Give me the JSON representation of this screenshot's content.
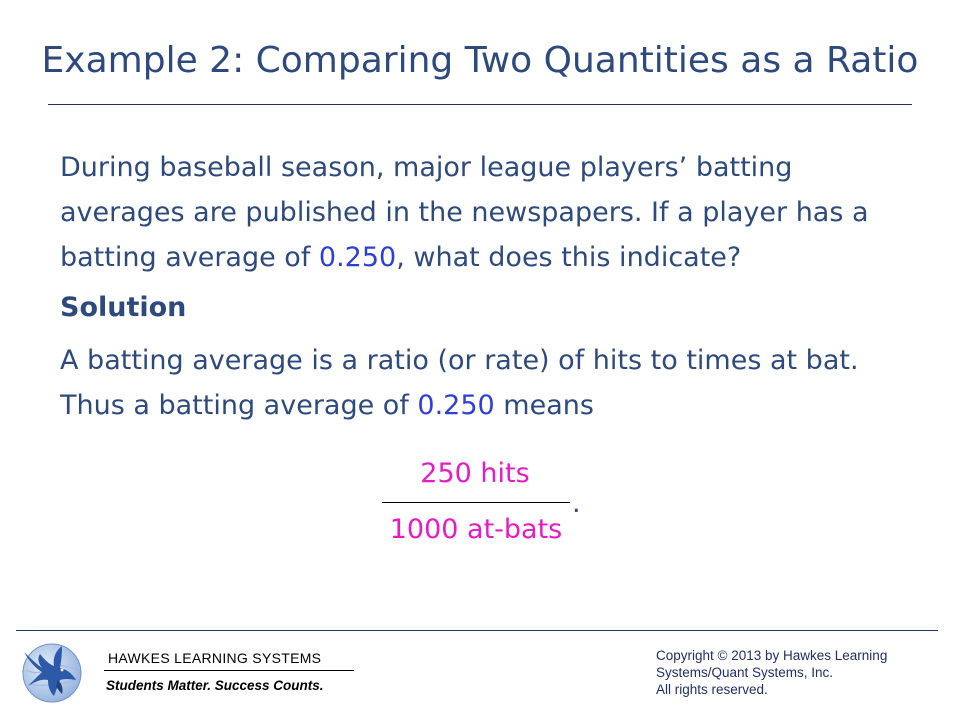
{
  "slide": {
    "title": "Example 2: Comparing Two Quantities as a Ratio",
    "paragraph1": {
      "text_before": "During baseball season, major league players’ batting averages are published in the newspapers.  If a player has a batting average of ",
      "highlight": "0.250",
      "text_after": ", what does this indicate?"
    },
    "solution_heading": "Solution",
    "paragraph2": {
      "text_before": "A batting average is a ratio (or rate) of hits to times at bat. Thus a batting average of ",
      "highlight": "0.250",
      "text_after": " means"
    },
    "fraction": {
      "numerator": "250 hits",
      "denominator": "1000 at-bats",
      "trailing": "."
    }
  },
  "footer": {
    "brand": "HAWKES  LEARNING  SYSTEMS",
    "tagline": "Students Matter. Success Counts.",
    "copyright_lines": [
      "Copyright © 2013 by Hawkes Learning",
      "Systems/Quant Systems, Inc.",
      "All rights reserved."
    ],
    "logo_icon": "eagle-globe-logo-icon"
  },
  "colors": {
    "text": "#2e4a7d",
    "highlight": "#2e3fd6",
    "fraction": "#e41cc4",
    "logo": "#2c5aa8"
  }
}
